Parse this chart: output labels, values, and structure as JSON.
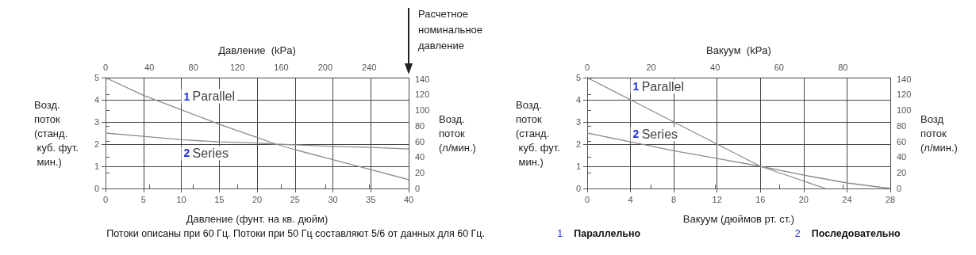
{
  "chart_data": [
    {
      "type": "line",
      "xlabel": "Давление (фунт. на кв. дюйм)",
      "ylabel": "Возд.\nпоток\n(станд.\n куб. фут.\n мин.)",
      "y2label": "Возд.\nпоток\n(л/мин.)",
      "x2label": "Давление  (kPa)",
      "x": [
        0,
        5,
        10,
        15,
        20,
        22.5,
        25,
        30,
        35,
        40
      ],
      "series": [
        {
          "name": "1 Parallel",
          "color": "#8c8c8c",
          "values": [
            5,
            4.2,
            3.55,
            2.9,
            2.3,
            2.0,
            1.75,
            1.3,
            0.85,
            0.4
          ]
        },
        {
          "name": "2 Series",
          "color": "#8c8c8c",
          "values": [
            2.5,
            2.35,
            2.2,
            2.1,
            2.05,
            2.0,
            1.97,
            1.9,
            1.85,
            1.78
          ]
        }
      ],
      "xlim": [
        0,
        40
      ],
      "xticks": [
        0,
        5,
        10,
        15,
        20,
        25,
        30,
        35,
        40
      ],
      "ylim": [
        0,
        5
      ],
      "yticks": [
        0,
        1,
        2,
        3,
        4,
        5
      ],
      "x2lim": [
        0,
        276
      ],
      "x2ticks": [
        0,
        40,
        80,
        120,
        160,
        200,
        240
      ],
      "y2lim": [
        0,
        141.6
      ],
      "y2ticks": [
        0,
        20,
        40,
        60,
        80,
        100,
        120,
        140
      ],
      "grid": true,
      "legend": false,
      "marker": "none",
      "line_style": "solid",
      "annotations": [
        "Расчетное\nноминальное\nдавление",
        "Потоки описаны при 60 Гц. Потоки при 50 Гц составляют 5/6 от данных для 60 Гц."
      ]
    },
    {
      "type": "line",
      "xlabel": "Вакуум (дюймов рт. ст.)",
      "ylabel": "Возд.\nпоток\n(станд.\n куб. фут.\n мин.)",
      "y2label": "Возд\nпоток\n(л/мин.)",
      "x2label": "Вакуум  (kPa)",
      "series": [
        {
          "name": "1 Parallel",
          "color": "#8c8c8c",
          "x": [
            0,
            4,
            8,
            12,
            16,
            22
          ],
          "values": [
            5,
            4,
            3,
            2,
            1,
            0
          ]
        },
        {
          "name": "2 Series",
          "color": "#8c8c8c",
          "x": [
            0,
            4,
            8,
            12,
            16,
            20,
            24,
            28
          ],
          "values": [
            2.5,
            2.1,
            1.7,
            1.35,
            1.0,
            0.6,
            0.25,
            0
          ]
        }
      ],
      "xlim": [
        0,
        28
      ],
      "xticks": [
        0,
        4,
        8,
        12,
        16,
        20,
        24,
        28
      ],
      "ylim": [
        0,
        5
      ],
      "yticks": [
        0,
        1,
        2,
        3,
        4,
        5
      ],
      "x2lim": [
        0,
        94.8
      ],
      "x2ticks": [
        0,
        20,
        40,
        60,
        80
      ],
      "y2lim": [
        0,
        141.6
      ],
      "y2ticks": [
        0,
        20,
        40,
        60,
        80,
        100,
        120,
        140
      ],
      "grid": true,
      "legend": false,
      "marker": "none",
      "line_style": "solid",
      "annotations": [
        "1 Параллельно",
        "2 Последовательно"
      ]
    }
  ]
}
